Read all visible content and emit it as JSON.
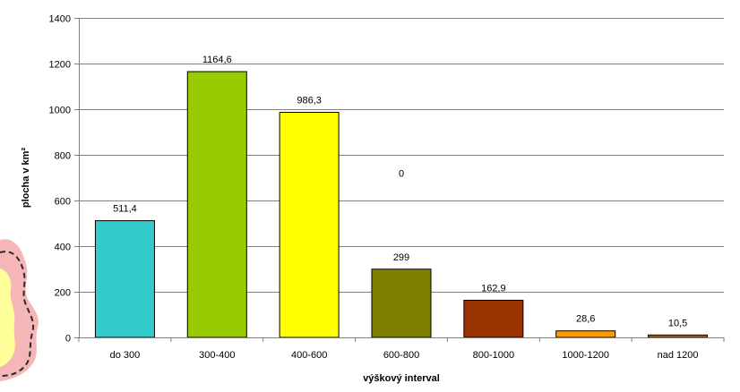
{
  "chart_data": {
    "type": "bar",
    "title": "",
    "xlabel": "výškový interval",
    "ylabel": "plocha v km²",
    "ylim": [
      0,
      1400
    ],
    "yticks": [
      0,
      200,
      400,
      600,
      800,
      1000,
      1200,
      1400
    ],
    "grid": true,
    "legend": "none",
    "categories": [
      "do 300",
      "300-400",
      "400-600",
      "600-800",
      "800-1000",
      "1000-1200",
      "nad 1200"
    ],
    "values": [
      511.4,
      1164.6,
      986.3,
      299,
      162.9,
      28.6,
      10.5
    ],
    "data_labels": [
      "511,4",
      "1164,6",
      "986,3",
      "299",
      "162,9",
      "28,6",
      "10,5"
    ],
    "bar_colors": [
      "#33cccc",
      "#99cc00",
      "#ffff00",
      "#808000",
      "#993300",
      "#ff9900",
      "#cc6600"
    ],
    "annotations": [
      {
        "text": "0",
        "category": "600-800",
        "y_value": 720
      }
    ]
  },
  "decor": {
    "map_fragment_colors": [
      "#f4b6b6",
      "#ffff99",
      "#2a2a2a"
    ]
  }
}
